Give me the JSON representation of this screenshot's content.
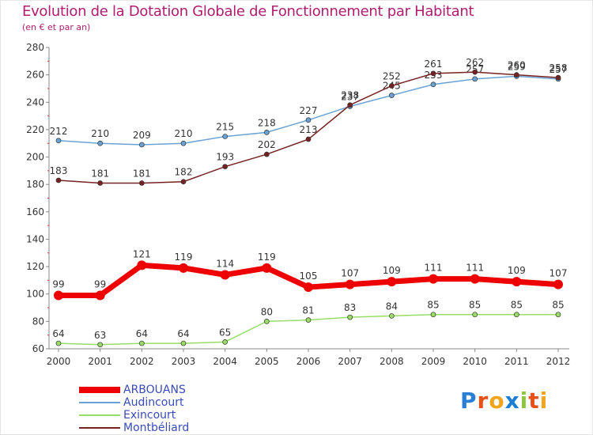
{
  "title": "Evolution de la Dotation Globale de Fonctionnement par Habitant",
  "subtitle": "(en € et par an)",
  "logo": {
    "text": "Proxiti",
    "letters": [
      "P",
      "r",
      "o",
      "x",
      "i",
      "t",
      "i"
    ],
    "colors": [
      "#2a7fd4",
      "#e8501a",
      "#f2a51a",
      "#1a7fd4",
      "#8cc63f",
      "#e8501a",
      "#f2a51a"
    ]
  },
  "colors": {
    "ARBOUANS": "#ee0000",
    "Audincourt": "#6aa2d4",
    "Exincourt": "#99dd66",
    "Montbeliard": "#772222",
    "axis": "#888888",
    "grid_tick": "#cc3333",
    "label": "#333333",
    "legend_text": "#3a4bb8"
  },
  "chart_data": {
    "type": "line",
    "title": "Evolution de la Dotation Globale de Fonctionnement par Habitant",
    "subtitle": "(en € et par an)",
    "xlabel": "",
    "ylabel": "",
    "categories": [
      "2000",
      "2001",
      "2002",
      "2003",
      "2004",
      "2005",
      "2006",
      "2007",
      "2008",
      "2009",
      "2010",
      "2011",
      "2012"
    ],
    "ylim": [
      60,
      280
    ],
    "yticks": [
      "60",
      "80",
      "100",
      "120",
      "140",
      "160",
      "180",
      "200",
      "220",
      "240",
      "260",
      "280"
    ],
    "legend_position": "bottom-left",
    "series": [
      {
        "name": "Audincourt",
        "color_key": "Audincourt",
        "values": [
          212,
          210,
          209,
          210,
          215,
          218,
          227,
          237,
          245,
          253,
          257,
          259,
          257
        ],
        "labels": [
          "212",
          "210",
          "209",
          "210",
          "215",
          "218",
          "227",
          "237",
          "245",
          "253",
          "257",
          "259",
          "257"
        ],
        "label_pos": "above"
      },
      {
        "name": "Montbéliard",
        "color_key": "Montbeliard",
        "values": [
          183,
          181,
          181,
          182,
          193,
          202,
          213,
          238,
          252,
          261,
          262,
          260,
          258
        ],
        "labels": [
          "183",
          "181",
          "181",
          "182",
          "193",
          "202",
          "213",
          "238",
          "252",
          "261",
          "262",
          "260",
          "258"
        ],
        "label_pos": "above"
      },
      {
        "name": "Exincourt",
        "color_key": "Exincourt",
        "values": [
          64,
          63,
          64,
          64,
          65,
          80,
          81,
          83,
          84,
          85,
          85,
          85,
          85
        ],
        "labels": [
          "64",
          "63",
          "64",
          "64",
          "65",
          "80",
          "81",
          "83",
          "84",
          "85",
          "85",
          "85",
          "85"
        ],
        "label_pos": "above"
      },
      {
        "name": "ARBOUANS",
        "color_key": "ARBOUANS",
        "values": [
          99,
          99,
          121,
          119,
          114,
          119,
          105,
          107,
          109,
          111,
          111,
          109,
          107
        ],
        "labels": [
          "99",
          "99",
          "121",
          "119",
          "114",
          "119",
          "105",
          "107",
          "109",
          "111",
          "111",
          "109",
          "107"
        ],
        "label_pos": "above",
        "bold": true
      }
    ],
    "legend": [
      "ARBOUANS",
      "Audincourt",
      "Exincourt",
      "Montbéliard"
    ]
  }
}
